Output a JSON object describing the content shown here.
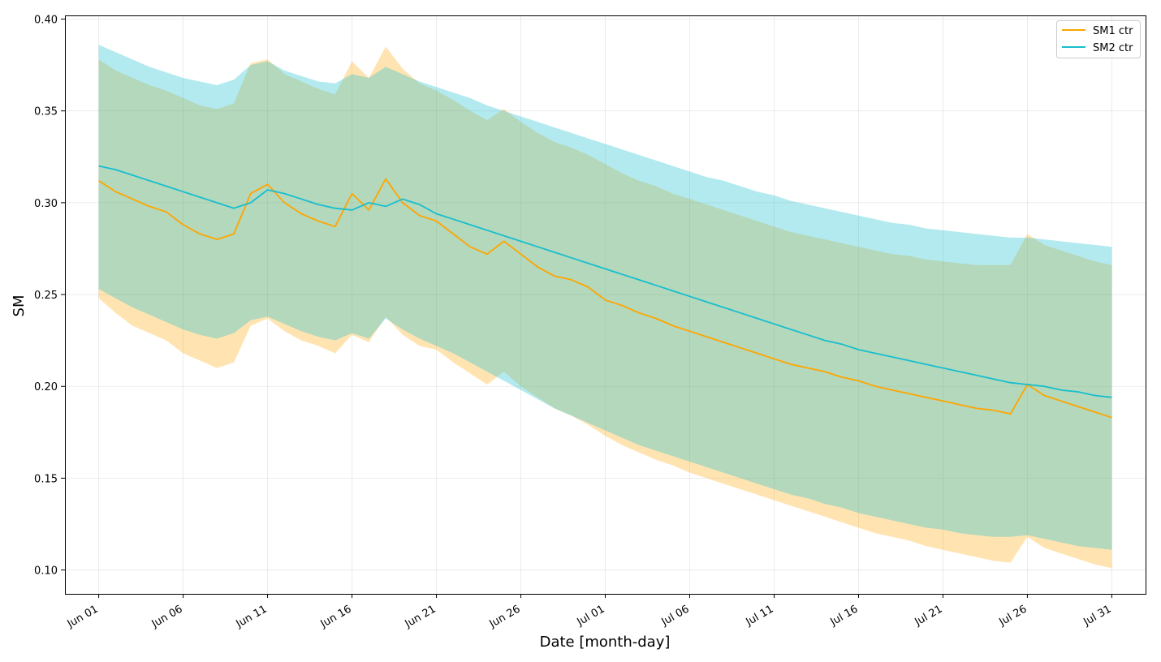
{
  "chart_data": {
    "type": "line",
    "title": "",
    "xlabel": "Date [month-day]",
    "ylabel": "SM",
    "xlim": [
      "2023-05-30",
      "2023-08-02"
    ],
    "ylim": [
      0.087,
      0.402
    ],
    "grid": true,
    "legend_position": "top-right",
    "x_ticks": [
      {
        "date": "2023-06-01",
        "label": "Jun 01"
      },
      {
        "date": "2023-06-06",
        "label": "Jun 06"
      },
      {
        "date": "2023-06-11",
        "label": "Jun 11"
      },
      {
        "date": "2023-06-16",
        "label": "Jun 16"
      },
      {
        "date": "2023-06-21",
        "label": "Jun 21"
      },
      {
        "date": "2023-06-26",
        "label": "Jun 26"
      },
      {
        "date": "2023-07-01",
        "label": "Jul 01"
      },
      {
        "date": "2023-07-06",
        "label": "Jul 06"
      },
      {
        "date": "2023-07-11",
        "label": "Jul 11"
      },
      {
        "date": "2023-07-16",
        "label": "Jul 16"
      },
      {
        "date": "2023-07-21",
        "label": "Jul 21"
      },
      {
        "date": "2023-07-26",
        "label": "Jul 26"
      },
      {
        "date": "2023-07-31",
        "label": "Jul 31"
      }
    ],
    "y_ticks": [
      {
        "value": 0.1,
        "label": "0.10"
      },
      {
        "value": 0.15,
        "label": "0.15"
      },
      {
        "value": 0.2,
        "label": "0.20"
      },
      {
        "value": 0.25,
        "label": "0.25"
      },
      {
        "value": 0.3,
        "label": "0.30"
      },
      {
        "value": 0.35,
        "label": "0.35"
      },
      {
        "value": 0.4,
        "label": "0.40"
      }
    ],
    "x": [
      "2023-06-01",
      "2023-06-02",
      "2023-06-03",
      "2023-06-04",
      "2023-06-05",
      "2023-06-06",
      "2023-06-07",
      "2023-06-08",
      "2023-06-09",
      "2023-06-10",
      "2023-06-11",
      "2023-06-12",
      "2023-06-13",
      "2023-06-14",
      "2023-06-15",
      "2023-06-16",
      "2023-06-17",
      "2023-06-18",
      "2023-06-19",
      "2023-06-20",
      "2023-06-21",
      "2023-06-22",
      "2023-06-23",
      "2023-06-24",
      "2023-06-25",
      "2023-06-26",
      "2023-06-27",
      "2023-06-28",
      "2023-06-29",
      "2023-06-30",
      "2023-07-01",
      "2023-07-02",
      "2023-07-03",
      "2023-07-04",
      "2023-07-05",
      "2023-07-06",
      "2023-07-07",
      "2023-07-08",
      "2023-07-09",
      "2023-07-10",
      "2023-07-11",
      "2023-07-12",
      "2023-07-13",
      "2023-07-14",
      "2023-07-15",
      "2023-07-16",
      "2023-07-17",
      "2023-07-18",
      "2023-07-19",
      "2023-07-20",
      "2023-07-21",
      "2023-07-22",
      "2023-07-23",
      "2023-07-24",
      "2023-07-25",
      "2023-07-26",
      "2023-07-27",
      "2023-07-28",
      "2023-07-29",
      "2023-07-30",
      "2023-07-31"
    ],
    "series": [
      {
        "name": "SM1 ctr",
        "color": "#FFA500",
        "band_color": "#FFA500",
        "band_opacity": 0.3,
        "values": [
          0.312,
          0.306,
          0.302,
          0.298,
          0.295,
          0.288,
          0.283,
          0.28,
          0.283,
          0.305,
          0.31,
          0.3,
          0.294,
          0.29,
          0.287,
          0.305,
          0.296,
          0.313,
          0.3,
          0.293,
          0.29,
          0.283,
          0.276,
          0.272,
          0.279,
          0.272,
          0.265,
          0.26,
          0.258,
          0.254,
          0.247,
          0.244,
          0.24,
          0.237,
          0.233,
          0.23,
          0.227,
          0.224,
          0.221,
          0.218,
          0.215,
          0.212,
          0.21,
          0.208,
          0.205,
          0.203,
          0.2,
          0.198,
          0.196,
          0.194,
          0.192,
          0.19,
          0.188,
          0.187,
          0.185,
          0.201,
          0.195,
          0.192,
          0.189,
          0.186,
          0.183
        ],
        "lower": [
          0.248,
          0.24,
          0.233,
          0.229,
          0.225,
          0.218,
          0.214,
          0.21,
          0.213,
          0.233,
          0.237,
          0.23,
          0.225,
          0.222,
          0.218,
          0.228,
          0.224,
          0.238,
          0.228,
          0.222,
          0.22,
          0.213,
          0.207,
          0.201,
          0.208,
          0.2,
          0.194,
          0.188,
          0.184,
          0.179,
          0.173,
          0.168,
          0.164,
          0.16,
          0.157,
          0.153,
          0.15,
          0.147,
          0.144,
          0.141,
          0.138,
          0.135,
          0.132,
          0.129,
          0.126,
          0.123,
          0.12,
          0.118,
          0.116,
          0.113,
          0.111,
          0.109,
          0.107,
          0.105,
          0.104,
          0.118,
          0.112,
          0.109,
          0.106,
          0.103,
          0.101
        ],
        "upper": [
          0.378,
          0.372,
          0.368,
          0.364,
          0.361,
          0.357,
          0.353,
          0.351,
          0.354,
          0.376,
          0.378,
          0.37,
          0.366,
          0.362,
          0.359,
          0.377,
          0.368,
          0.385,
          0.373,
          0.365,
          0.361,
          0.356,
          0.35,
          0.345,
          0.351,
          0.344,
          0.338,
          0.333,
          0.33,
          0.326,
          0.321,
          0.316,
          0.312,
          0.309,
          0.305,
          0.302,
          0.299,
          0.296,
          0.293,
          0.29,
          0.287,
          0.284,
          0.282,
          0.28,
          0.278,
          0.276,
          0.274,
          0.272,
          0.271,
          0.269,
          0.268,
          0.267,
          0.266,
          0.266,
          0.266,
          0.283,
          0.277,
          0.274,
          0.271,
          0.268,
          0.266
        ]
      },
      {
        "name": "SM2 ctr",
        "color": "#17BECF",
        "band_color": "#17BECF",
        "band_opacity": 0.33,
        "values": [
          0.32,
          0.318,
          0.315,
          0.312,
          0.309,
          0.306,
          0.303,
          0.3,
          0.297,
          0.3,
          0.307,
          0.305,
          0.302,
          0.299,
          0.297,
          0.296,
          0.3,
          0.298,
          0.302,
          0.299,
          0.294,
          0.291,
          0.288,
          0.285,
          0.282,
          0.279,
          0.276,
          0.273,
          0.27,
          0.267,
          0.264,
          0.261,
          0.258,
          0.255,
          0.252,
          0.249,
          0.246,
          0.243,
          0.24,
          0.237,
          0.234,
          0.231,
          0.228,
          0.225,
          0.223,
          0.22,
          0.218,
          0.216,
          0.214,
          0.212,
          0.21,
          0.208,
          0.206,
          0.204,
          0.202,
          0.201,
          0.2,
          0.198,
          0.197,
          0.195,
          0.194
        ],
        "lower": [
          0.253,
          0.248,
          0.243,
          0.239,
          0.235,
          0.231,
          0.228,
          0.226,
          0.229,
          0.236,
          0.238,
          0.234,
          0.23,
          0.227,
          0.225,
          0.229,
          0.226,
          0.237,
          0.231,
          0.226,
          0.222,
          0.218,
          0.213,
          0.208,
          0.203,
          0.198,
          0.193,
          0.188,
          0.184,
          0.18,
          0.176,
          0.172,
          0.168,
          0.165,
          0.162,
          0.159,
          0.156,
          0.153,
          0.15,
          0.147,
          0.144,
          0.141,
          0.139,
          0.136,
          0.134,
          0.131,
          0.129,
          0.127,
          0.125,
          0.123,
          0.122,
          0.12,
          0.119,
          0.118,
          0.118,
          0.119,
          0.117,
          0.115,
          0.113,
          0.112,
          0.111
        ],
        "upper": [
          0.386,
          0.382,
          0.378,
          0.374,
          0.371,
          0.368,
          0.366,
          0.364,
          0.367,
          0.375,
          0.377,
          0.372,
          0.369,
          0.366,
          0.365,
          0.37,
          0.368,
          0.374,
          0.37,
          0.366,
          0.363,
          0.36,
          0.357,
          0.353,
          0.35,
          0.347,
          0.344,
          0.341,
          0.338,
          0.335,
          0.332,
          0.329,
          0.326,
          0.323,
          0.32,
          0.317,
          0.314,
          0.312,
          0.309,
          0.306,
          0.304,
          0.301,
          0.299,
          0.297,
          0.295,
          0.293,
          0.291,
          0.289,
          0.288,
          0.286,
          0.285,
          0.284,
          0.283,
          0.282,
          0.281,
          0.281,
          0.28,
          0.279,
          0.278,
          0.277,
          0.276
        ]
      }
    ]
  }
}
